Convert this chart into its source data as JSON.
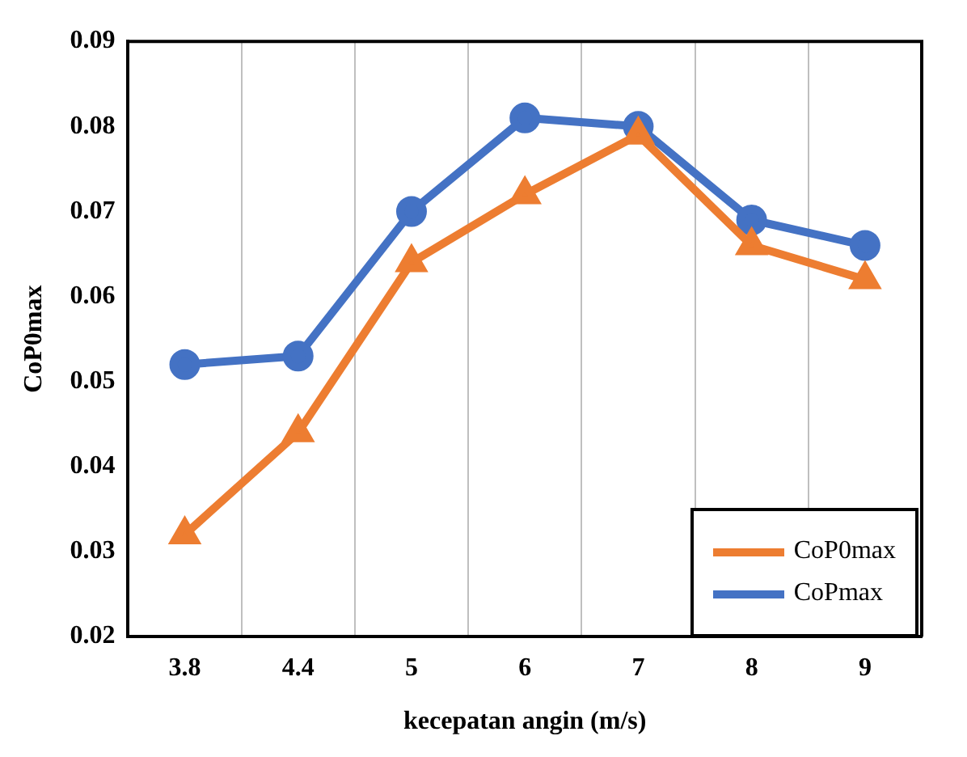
{
  "chart_data": {
    "type": "line",
    "xlabel": "kecepatan angin (m/s)",
    "ylabel": "CoP0max",
    "categories": [
      "3.8",
      "4.4",
      "5",
      "6",
      "7",
      "8",
      "9"
    ],
    "series": [
      {
        "name": "CoP0max",
        "color": "#ed7d31",
        "marker": "triangle",
        "values": [
          0.032,
          0.044,
          0.064,
          0.072,
          0.079,
          0.066,
          0.062
        ]
      },
      {
        "name": "CoPmax",
        "color": "#4472c4",
        "marker": "circle",
        "values": [
          0.052,
          0.053,
          0.07,
          0.081,
          0.08,
          0.069,
          0.066
        ]
      }
    ],
    "ylim": [
      0.02,
      0.09
    ],
    "yticks": [
      0.02,
      0.03,
      0.04,
      0.05,
      0.06,
      0.07,
      0.08,
      0.09
    ],
    "grid": "x",
    "legend": "bottom right",
    "line_style": "solid"
  }
}
